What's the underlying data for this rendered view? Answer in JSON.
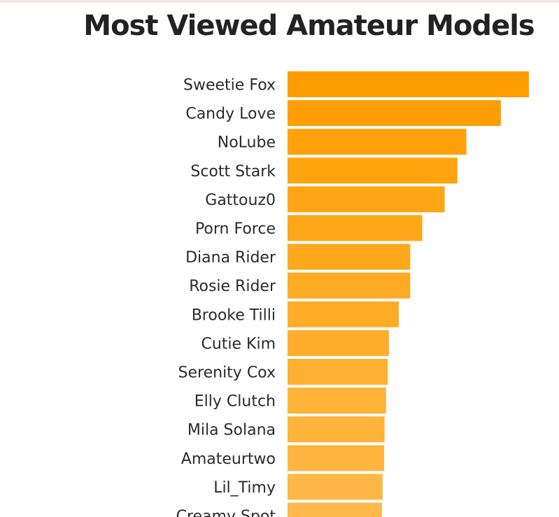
{
  "chart_data": {
    "type": "bar",
    "orientation": "horizontal",
    "title": "Most Viewed Amateur Models",
    "categories": [
      "Sweetie Fox",
      "Candy Love",
      "NoLube",
      "Scott Stark",
      "Gattouz0",
      "Porn Force",
      "Diana Rider",
      "Rosie Rider",
      "Brooke Tilli",
      "Cutie Kim",
      "Serenity Cox",
      "Elly Clutch",
      "Mila Solana",
      "Amateurtwo",
      "Lil_Timy",
      "Creamy Spot"
    ],
    "values": [
      100,
      88.4,
      74.1,
      70.4,
      65.1,
      55.8,
      50.8,
      50.8,
      46.1,
      42.0,
      41.5,
      40.8,
      40.2,
      40.0,
      39.4,
      39.1
    ],
    "xlim": [
      0,
      100
    ],
    "colors": {
      "bar_start": "#ff9d00",
      "bar_end": "#ffb94a"
    },
    "grid": false,
    "legend": "none"
  }
}
